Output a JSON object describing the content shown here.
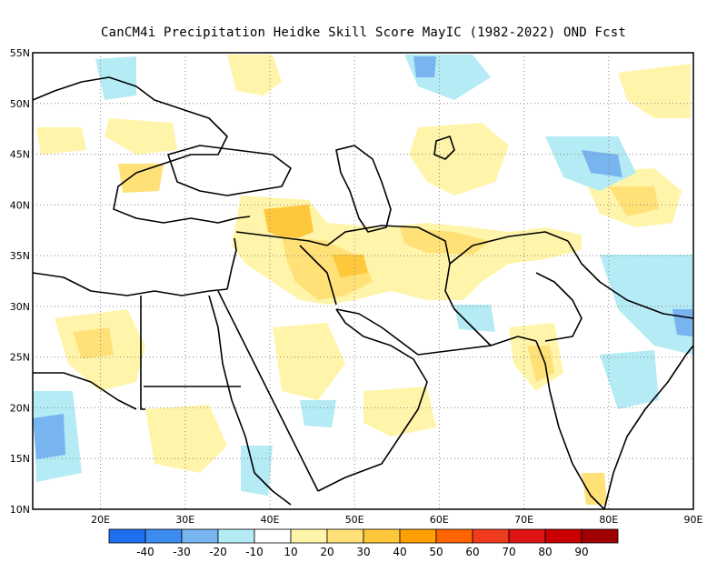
{
  "title": "CanCM4i  Precipitation Heidke Skill Score MayIC (1982-2022) OND Fcst",
  "map": {
    "lon_range": [
      12,
      90
    ],
    "lat_range": [
      10,
      55
    ],
    "lat_ticks": [
      "10N",
      "15N",
      "20N",
      "25N",
      "30N",
      "35N",
      "40N",
      "45N",
      "50N",
      "55N"
    ],
    "lon_ticks": [
      "20E",
      "30E",
      "40E",
      "50E",
      "60E",
      "70E",
      "80E",
      "90E"
    ],
    "lat_values": [
      10,
      15,
      20,
      25,
      30,
      35,
      40,
      45,
      50,
      55
    ],
    "lon_values": [
      20,
      30,
      40,
      50,
      60,
      70,
      80,
      90
    ],
    "grid": "dotted"
  },
  "colorbar": {
    "labels": [
      "-40",
      "-30",
      "-20",
      "-10",
      "10",
      "20",
      "30",
      "40",
      "50",
      "60",
      "70",
      "80",
      "90"
    ],
    "colors": [
      "#1e6ef0",
      "#3c8cf0",
      "#78b4f0",
      "#b4ebf5",
      "#ffffff",
      "#fff5aa",
      "#ffe178",
      "#ffc83c",
      "#ffa000",
      "#ff6400",
      "#f03c1e",
      "#dc1414",
      "#c80000",
      "#a00000"
    ]
  },
  "shading_colors": {
    "pos10": "#fff5aa",
    "pos20": "#ffe178",
    "pos30": "#ffc83c",
    "neg10": "#b4ebf5",
    "neg20": "#78b4f0",
    "neg30": "#3c8cf0"
  }
}
